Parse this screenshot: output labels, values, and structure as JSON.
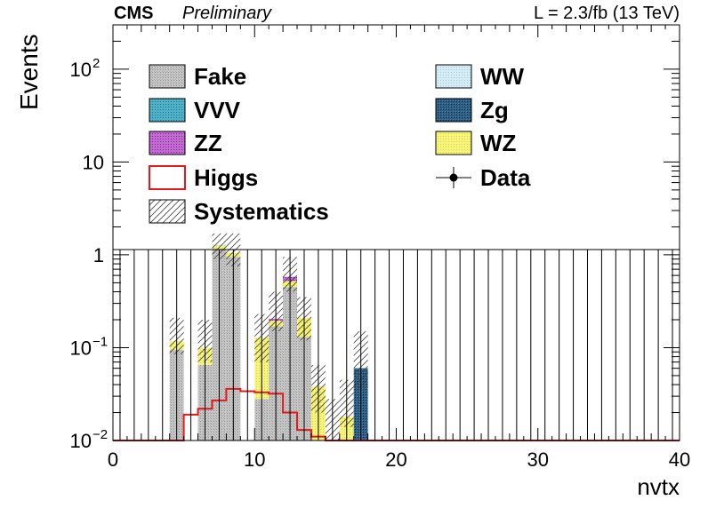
{
  "header": {
    "experiment": "CMS",
    "status": "Preliminary",
    "lumi": "L = 2.3/fb (13 TeV)"
  },
  "chart_data": {
    "type": "bar",
    "stacked": true,
    "xlabel": "nvtx",
    "ylabel": "Events",
    "xlim": [
      0,
      40
    ],
    "ylim": [
      0.01,
      300
    ],
    "yscale": "log",
    "bin_width": 1,
    "x_ticks": [
      "0",
      "10",
      "20",
      "30",
      "40"
    ],
    "y_ticks": [
      {
        "value": 0.01,
        "base": "10",
        "exp": "−2"
      },
      {
        "value": 0.1,
        "base": "10",
        "exp": "−1"
      },
      {
        "value": 1,
        "base": "1",
        "exp": ""
      },
      {
        "value": 10,
        "base": "10",
        "exp": ""
      },
      {
        "value": 100,
        "base": "10",
        "exp": "2"
      }
    ],
    "legend_position": "top",
    "legend": [
      {
        "label": "Fake",
        "key": "fake"
      },
      {
        "label": "WW",
        "key": "ww"
      },
      {
        "label": "VVV",
        "key": "vvv"
      },
      {
        "label": "Zg",
        "key": "zg"
      },
      {
        "label": "ZZ",
        "key": "zz"
      },
      {
        "label": "WZ",
        "key": "wz"
      },
      {
        "label": "Higgs",
        "key": "higgs"
      },
      {
        "label": "Data",
        "key": "data"
      },
      {
        "label": "Systematics",
        "key": "syst"
      }
    ],
    "colors": {
      "fake": "#bdbdbd",
      "ww": "#cfe6f0",
      "vvv": "#4aa7c0",
      "zg": "#224d6e",
      "zz": "#b34fc4",
      "wz": "#f4f06a",
      "higgs": "#e31a1c",
      "data": "#000000",
      "syst": "#555555"
    },
    "series": [
      {
        "name": "Fake",
        "key": "fake",
        "bins": [
          {
            "x": 4,
            "y": 0.095
          },
          {
            "x": 6,
            "y": 0.065
          },
          {
            "x": 7,
            "y": 1.15
          },
          {
            "x": 8,
            "y": 0.95
          },
          {
            "x": 10,
            "y": 0.028
          },
          {
            "x": 11,
            "y": 0.17
          },
          {
            "x": 12,
            "y": 0.45
          },
          {
            "x": 13,
            "y": 0.13
          }
        ]
      },
      {
        "name": "WZ",
        "key": "wz",
        "bins": [
          {
            "x": 4,
            "y": 0.022
          },
          {
            "x": 6,
            "y": 0.035
          },
          {
            "x": 7,
            "y": 0.1
          },
          {
            "x": 8,
            "y": 0.1
          },
          {
            "x": 10,
            "y": 0.1
          },
          {
            "x": 11,
            "y": 0.025
          },
          {
            "x": 12,
            "y": 0.07
          },
          {
            "x": 13,
            "y": 0.08
          },
          {
            "x": 14,
            "y": 0.038
          },
          {
            "x": 16,
            "y": 0.018
          },
          {
            "x": 17,
            "y": 0.008
          }
        ]
      },
      {
        "name": "ZZ",
        "key": "zz",
        "bins": [
          {
            "x": 11,
            "y": 0.01
          },
          {
            "x": 12,
            "y": 0.06
          }
        ]
      },
      {
        "name": "Zg",
        "key": "zg",
        "bins": [
          {
            "x": 17,
            "y": 0.052
          }
        ]
      },
      {
        "name": "WW",
        "key": "ww",
        "bins": [
          {
            "x": 7,
            "y": 0.04
          }
        ]
      }
    ],
    "higgs": [
      0.01,
      0.01,
      0.01,
      0.01,
      0.01,
      0.019,
      0.022,
      0.027,
      0.036,
      0.034,
      0.033,
      0.032,
      0.02,
      0.013,
      0.011,
      0.01,
      0.01,
      0.01,
      0.01,
      0.01,
      0.01,
      0.01,
      0.01,
      0.01,
      0.01,
      0.01,
      0.01,
      0.01,
      0.01,
      0.01,
      0.01,
      0.01,
      0.01,
      0.01,
      0.01,
      0.01,
      0.01,
      0.01,
      0.01,
      0.01
    ],
    "systematics_band": [
      {
        "x": 4,
        "low": 0.085,
        "high": 0.21
      },
      {
        "x": 6,
        "low": 0.07,
        "high": 0.2
      },
      {
        "x": 7,
        "low": 0.9,
        "high": 1.7
      },
      {
        "x": 8,
        "low": 0.75,
        "high": 1.7
      },
      {
        "x": 10,
        "low": 0.07,
        "high": 0.23
      },
      {
        "x": 11,
        "low": 0.15,
        "high": 0.4
      },
      {
        "x": 12,
        "low": 0.4,
        "high": 0.95
      },
      {
        "x": 13,
        "low": 0.12,
        "high": 0.35
      },
      {
        "x": 14,
        "low": 0.02,
        "high": 0.065
      },
      {
        "x": 15,
        "low": 0.01,
        "high": 0.028
      },
      {
        "x": 16,
        "low": 0.014,
        "high": 0.045
      },
      {
        "x": 17,
        "low": 0.035,
        "high": 0.15
      }
    ],
    "data": {
      "value": 0,
      "err_high": 1.14
    }
  }
}
